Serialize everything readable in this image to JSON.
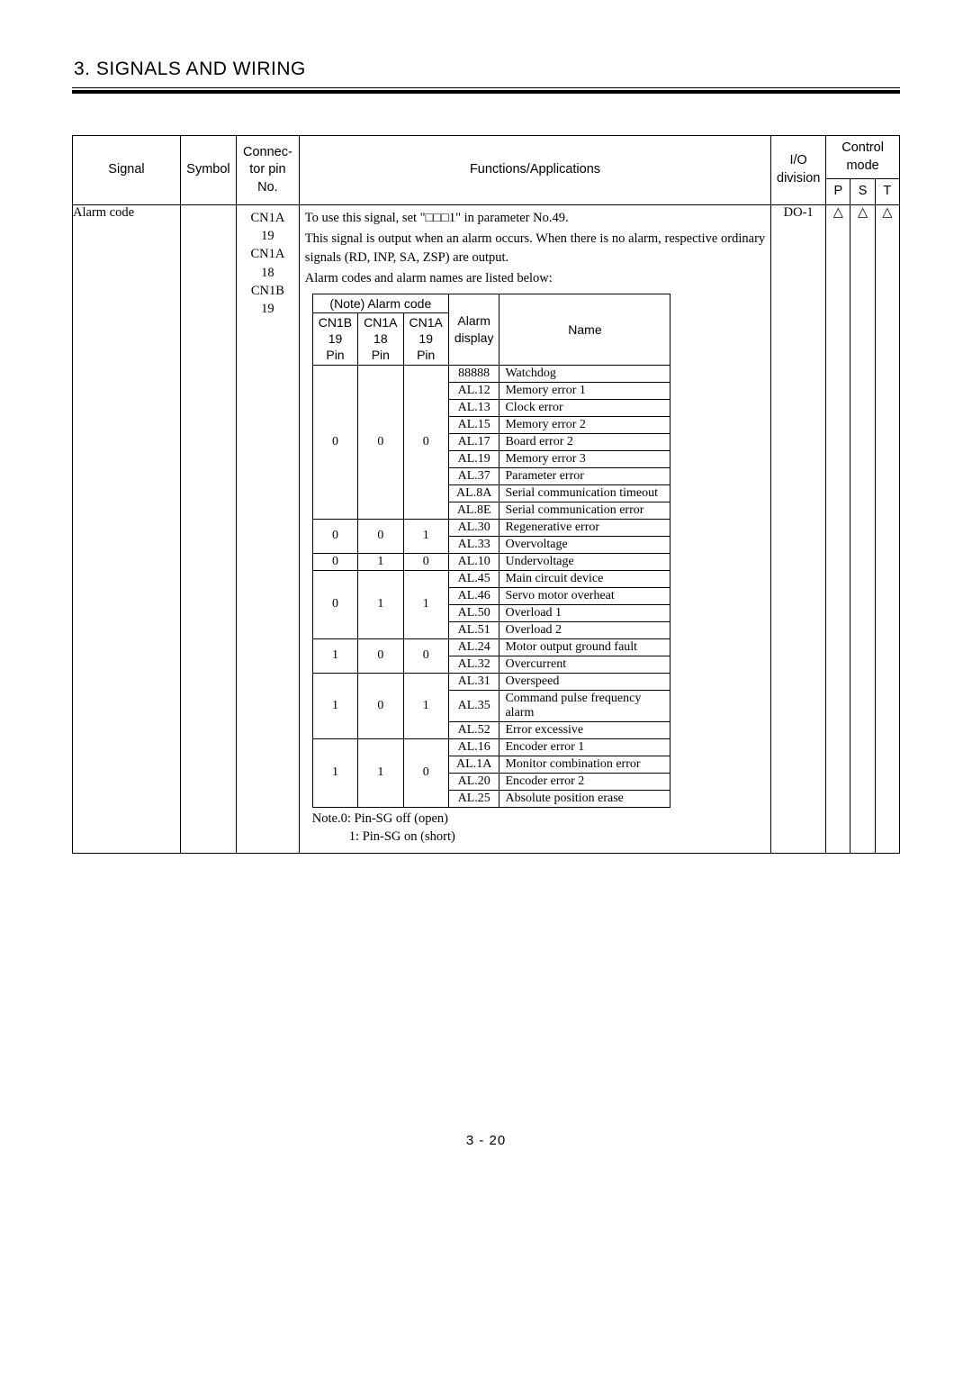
{
  "section_title": "3. SIGNALS AND WIRING",
  "page_number": "3 -  20",
  "outer": {
    "headers": {
      "signal": "Signal",
      "symbol": "Symbol",
      "connector": "Connec-\ntor pin\nNo.",
      "functions": "Functions/Applications",
      "io": "I/O\ndivision",
      "control_mode": "Control\nmode",
      "p": "P",
      "s": "S",
      "t": "T"
    },
    "row": {
      "signal": "Alarm code",
      "symbol": "",
      "pins": "CN1A\n19\nCN1A\n18\nCN1B\n19",
      "io": "DO-1",
      "p": "△",
      "s": "△",
      "t": "△"
    },
    "func_lines": [
      "To use this signal, set \"□□□1\" in parameter No.49.",
      "This signal is output when an alarm occurs. When there is no alarm, respective ordinary signals (RD, INP, SA, ZSP) are output.",
      "Alarm codes and alarm names are listed below:"
    ],
    "notes": [
      "Note.0: Pin-SG off (open)",
      "1: Pin-SG on (short)"
    ]
  },
  "inner": {
    "head": {
      "note_alarm_code": "(Note) Alarm code",
      "cn1b19": "CN1B\n19 Pin",
      "cn1a18": "CN1A\n18 Pin",
      "cn1a19": "CN1A\n19 Pin",
      "alarm_display": "Alarm\ndisplay",
      "name": "Name"
    },
    "col_widths": {
      "c1": 44,
      "c2": 44,
      "c3": 44,
      "disp": 56,
      "name": 190
    },
    "groups": [
      {
        "code": [
          "0",
          "0",
          "0"
        ],
        "rows": [
          {
            "d": "88888",
            "n": "Watchdog"
          },
          {
            "d": "AL.12",
            "n": "Memory error 1"
          },
          {
            "d": "AL.13",
            "n": "Clock error"
          },
          {
            "d": "AL.15",
            "n": "Memory error 2"
          },
          {
            "d": "AL.17",
            "n": "Board error 2"
          },
          {
            "d": "AL.19",
            "n": "Memory error 3"
          },
          {
            "d": "AL.37",
            "n": "Parameter error"
          },
          {
            "d": "AL.8A",
            "n": "Serial communication timeout"
          },
          {
            "d": "AL.8E",
            "n": "Serial communication error"
          }
        ]
      },
      {
        "code": [
          "0",
          "0",
          "1"
        ],
        "rows": [
          {
            "d": "AL.30",
            "n": "Regenerative error"
          },
          {
            "d": "AL.33",
            "n": "Overvoltage"
          }
        ]
      },
      {
        "code": [
          "0",
          "1",
          "0"
        ],
        "rows": [
          {
            "d": "AL.10",
            "n": "Undervoltage"
          }
        ]
      },
      {
        "code": [
          "0",
          "1",
          "1"
        ],
        "rows": [
          {
            "d": "AL.45",
            "n": "Main circuit device"
          },
          {
            "d": "AL.46",
            "n": "Servo motor overheat"
          },
          {
            "d": "AL.50",
            "n": "Overload 1"
          },
          {
            "d": "AL.51",
            "n": "Overload 2"
          }
        ]
      },
      {
        "code": [
          "1",
          "0",
          "0"
        ],
        "rows": [
          {
            "d": "AL.24",
            "n": "Motor output ground fault"
          },
          {
            "d": "AL.32",
            "n": "Overcurrent"
          }
        ]
      },
      {
        "code": [
          "1",
          "0",
          "1"
        ],
        "rows": [
          {
            "d": "AL.31",
            "n": "Overspeed"
          },
          {
            "d": "AL.35",
            "n": "Command pulse frequency alarm"
          },
          {
            "d": "AL.52",
            "n": "Error excessive"
          }
        ]
      },
      {
        "code": [
          "1",
          "1",
          "0"
        ],
        "rows": [
          {
            "d": "AL.16",
            "n": "Encoder error 1"
          },
          {
            "d": "AL.1A",
            "n": "Monitor combination error"
          },
          {
            "d": "AL.20",
            "n": "Encoder error 2"
          },
          {
            "d": "AL.25",
            "n": "Absolute position erase"
          }
        ]
      }
    ]
  }
}
